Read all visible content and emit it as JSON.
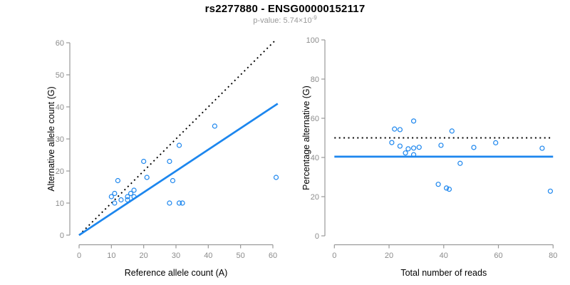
{
  "header": {
    "title": "rs2277880 - ENSG00000152117",
    "pvalue_label": "p-value: 5.74×10",
    "pvalue_exponent": "-9"
  },
  "colors": {
    "accent_blue": "#1c86ee",
    "line_black": "#000000",
    "axis_gray": "#999999",
    "tick_text_gray": "#8c8c8c",
    "subtitle_gray": "#9a9a9a"
  },
  "chart_data": [
    {
      "type": "scatter",
      "name": "allele-counts-scatter",
      "xlabel": "Reference allele count (A)",
      "ylabel": "Alternative allele count (G)",
      "xlim": [
        0,
        60
      ],
      "ylim": [
        0,
        60
      ],
      "xticks": [
        0,
        10,
        20,
        30,
        40,
        50,
        60
      ],
      "yticks": [
        0,
        10,
        20,
        30,
        40,
        50,
        60
      ],
      "grid": false,
      "points": [
        [
          10,
          12
        ],
        [
          11,
          13
        ],
        [
          11,
          10
        ],
        [
          12,
          17
        ],
        [
          13,
          11
        ],
        [
          15,
          12
        ],
        [
          15,
          11
        ],
        [
          16,
          13
        ],
        [
          17,
          14
        ],
        [
          17,
          12
        ],
        [
          20,
          23
        ],
        [
          21,
          18
        ],
        [
          28,
          23
        ],
        [
          28,
          10
        ],
        [
          29,
          17
        ],
        [
          31,
          28
        ],
        [
          31,
          10
        ],
        [
          32,
          10
        ],
        [
          42,
          34
        ],
        [
          61,
          18
        ]
      ],
      "lines": [
        {
          "name": "identity-50pct-line",
          "style": "dotted",
          "color": "#000000",
          "x1": 0,
          "y1": 0,
          "x2": 61,
          "y2": 61
        },
        {
          "name": "fitted-proportion-line",
          "style": "solid",
          "color": "#1c86ee",
          "x1": 0,
          "y1": 0,
          "x2": 61.5,
          "y2": 41
        }
      ]
    },
    {
      "type": "scatter",
      "name": "percentage-scatter",
      "xlabel": "Total number of reads",
      "ylabel": "Percentage alternative (G)",
      "xlim": [
        0,
        80
      ],
      "ylim": [
        0,
        100
      ],
      "xticks": [
        0,
        20,
        40,
        60,
        80
      ],
      "yticks": [
        0,
        20,
        40,
        60,
        80,
        100
      ],
      "grid": false,
      "points": [
        [
          22,
          54.5
        ],
        [
          24,
          54.2
        ],
        [
          21,
          47.6
        ],
        [
          29,
          58.6
        ],
        [
          24,
          45.8
        ],
        [
          27,
          44.4
        ],
        [
          26,
          42.3
        ],
        [
          29,
          44.8
        ],
        [
          31,
          45.2
        ],
        [
          29,
          41.4
        ],
        [
          43,
          53.5
        ],
        [
          39,
          46.2
        ],
        [
          51,
          45.1
        ],
        [
          38,
          26.3
        ],
        [
          46,
          37.0
        ],
        [
          59,
          47.5
        ],
        [
          41,
          24.4
        ],
        [
          42,
          23.8
        ],
        [
          76,
          44.7
        ],
        [
          79,
          22.8
        ]
      ],
      "lines": [
        {
          "name": "fifty-percent-line",
          "style": "dotted",
          "color": "#000000",
          "x1": 0,
          "y1": 50,
          "x2": 80,
          "y2": 50
        },
        {
          "name": "estimated-percentage-line",
          "style": "solid",
          "color": "#1c86ee",
          "x1": 0,
          "y1": 40.4,
          "x2": 80,
          "y2": 40.4
        }
      ]
    }
  ]
}
